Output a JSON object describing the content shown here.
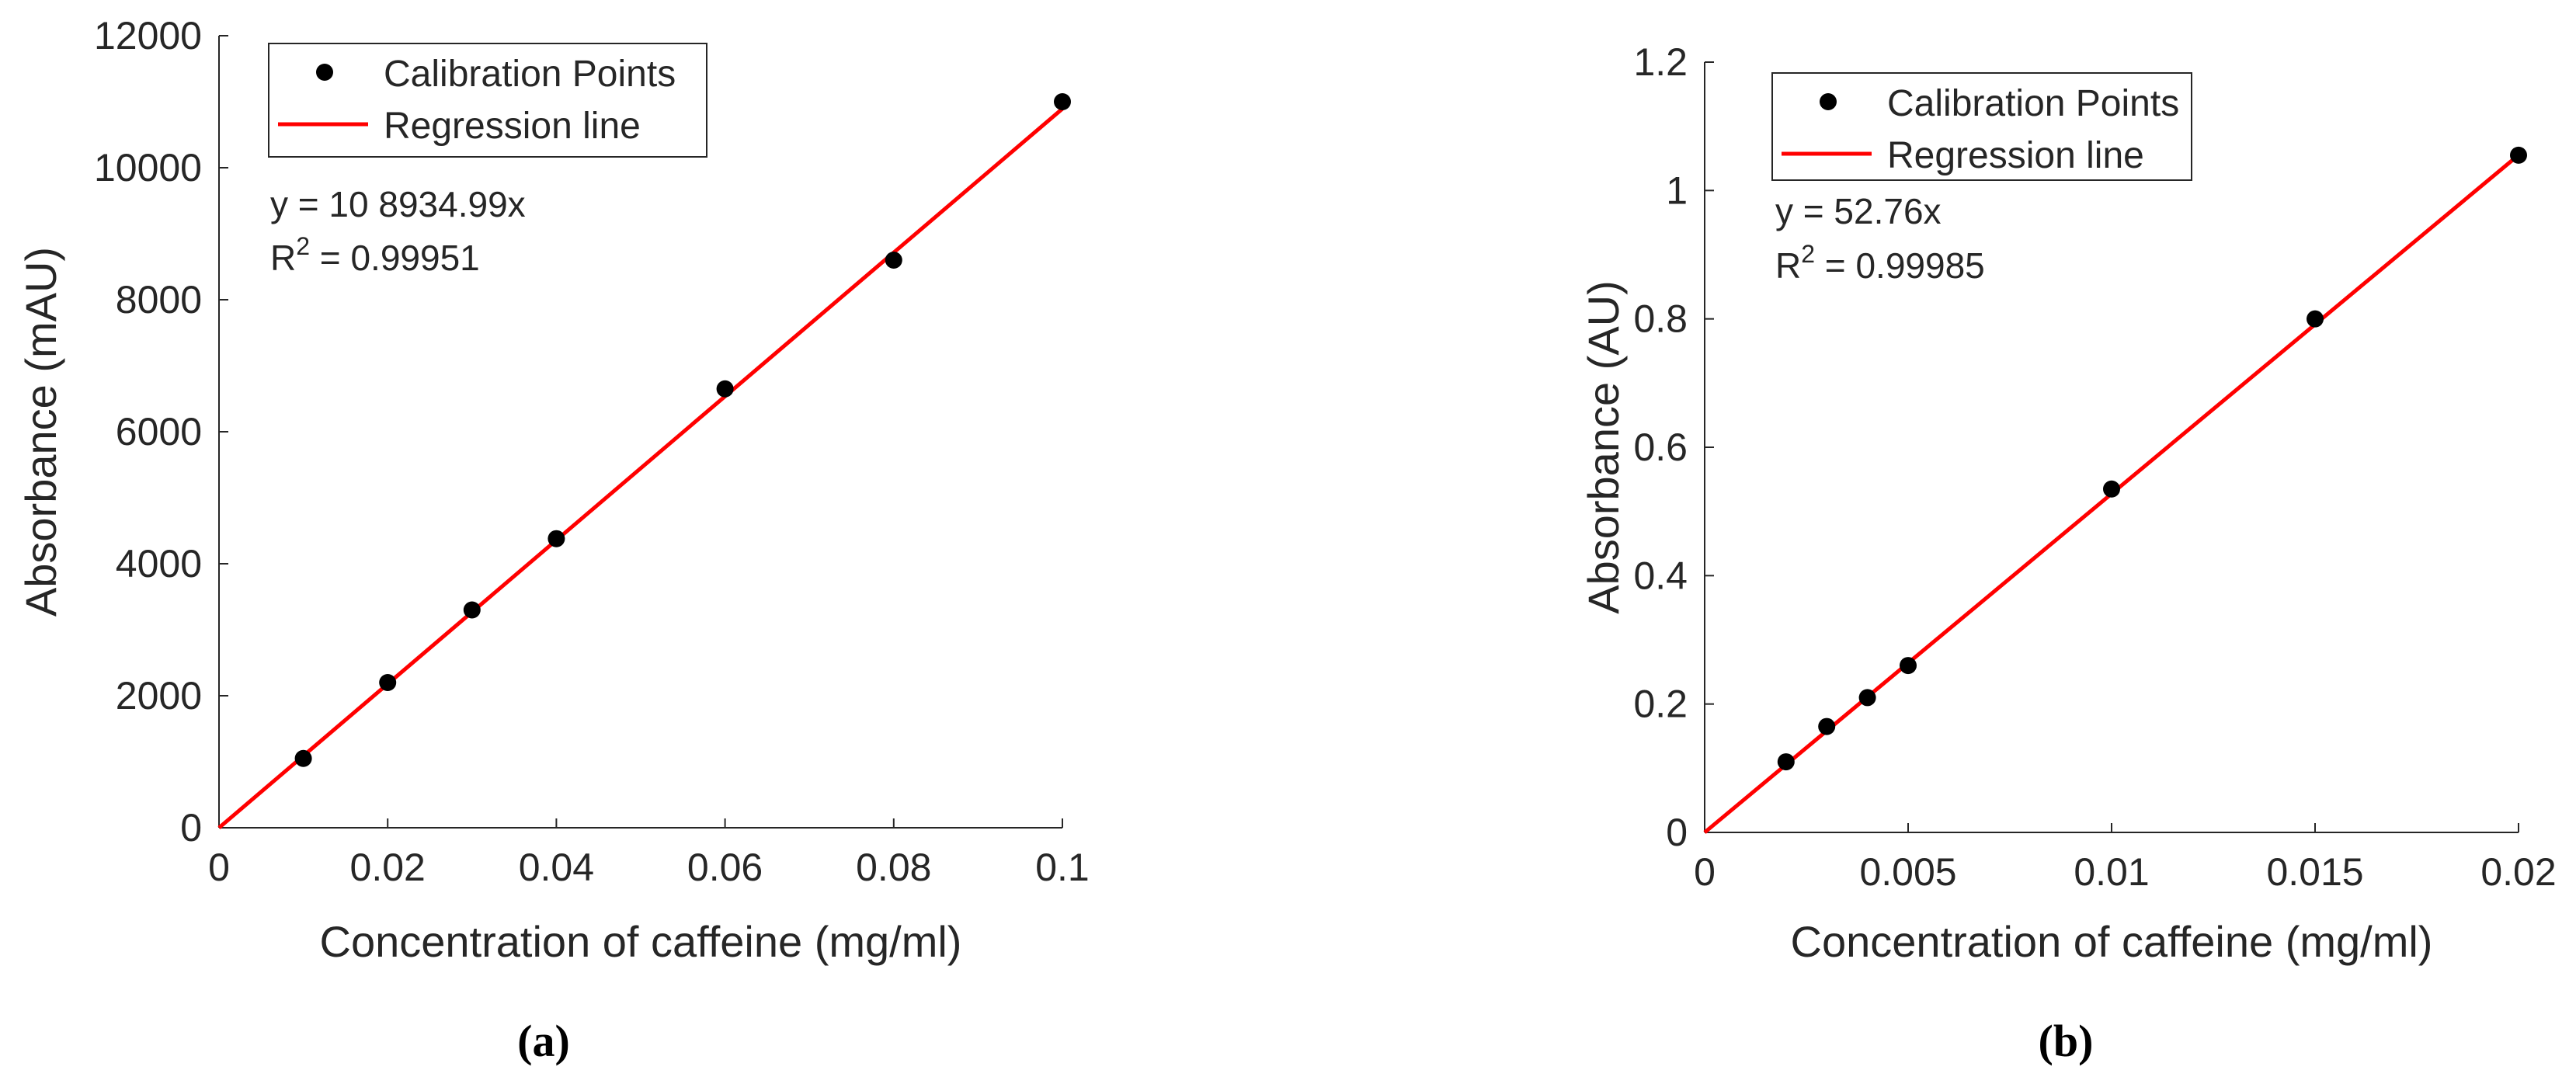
{
  "chart_data": [
    {
      "type": "scatter",
      "panel_label": "(a)",
      "xlabel": "Concentration of caffeine (mg/ml)",
      "ylabel": "Absorbance (mAU)",
      "xlim": [
        0,
        0.1
      ],
      "ylim": [
        0,
        12000
      ],
      "xticks": [
        0,
        0.02,
        0.04,
        0.06,
        0.08,
        0.1
      ],
      "xtick_labels": [
        "0",
        "0.02",
        "0.04",
        "0.06",
        "0.08",
        "0.1"
      ],
      "yticks": [
        0,
        2000,
        4000,
        6000,
        8000,
        10000,
        12000
      ],
      "ytick_labels": [
        "0",
        "2000",
        "4000",
        "6000",
        "8000",
        "10000",
        "12000"
      ],
      "grid": false,
      "legend_position": "top-left",
      "legend": [
        "Calibration Points",
        "Regression line"
      ],
      "series": [
        {
          "name": "Calibration Points",
          "kind": "points",
          "x": [
            0.01,
            0.02,
            0.03,
            0.04,
            0.06,
            0.08,
            0.1
          ],
          "y": [
            1050,
            2200,
            3300,
            4380,
            6650,
            8600,
            11000
          ]
        },
        {
          "name": "Regression line",
          "kind": "line",
          "slope": 108934.99,
          "x": [
            0,
            0.1
          ],
          "y": [
            0,
            10893.5
          ]
        }
      ],
      "annotations": {
        "equation": "y = 10 8934.99x",
        "r2_prefix": "R",
        "r2_sup": "2",
        "r2_value": " = 0.99951"
      }
    },
    {
      "type": "scatter",
      "panel_label": "(b)",
      "xlabel": "Concentration of caffeine (mg/ml)",
      "ylabel": "Absorbance (AU)",
      "xlim": [
        0,
        0.02
      ],
      "ylim": [
        0,
        1.2
      ],
      "xticks": [
        0,
        0.005,
        0.01,
        0.015,
        0.02
      ],
      "xtick_labels": [
        "0",
        "0.005",
        "0.01",
        "0.015",
        "0.02"
      ],
      "yticks": [
        0,
        0.2,
        0.4,
        0.6,
        0.8,
        1.0,
        1.2
      ],
      "ytick_labels": [
        "0",
        "0.2",
        "0.4",
        "0.6",
        "0.8",
        "1",
        "1.2"
      ],
      "grid": false,
      "legend_position": "top-left",
      "legend": [
        "Calibration Points",
        "Regression line"
      ],
      "series": [
        {
          "name": "Calibration Points",
          "kind": "points",
          "x": [
            0.002,
            0.003,
            0.004,
            0.005,
            0.01,
            0.015,
            0.02
          ],
          "y": [
            0.11,
            0.165,
            0.21,
            0.26,
            0.535,
            0.8,
            1.055
          ]
        },
        {
          "name": "Regression line",
          "kind": "line",
          "slope": 52.76,
          "x": [
            0,
            0.02
          ],
          "y": [
            0,
            1.0552
          ]
        }
      ],
      "annotations": {
        "equation": "y = 52.76x",
        "r2_prefix": "R",
        "r2_sup": "2",
        "r2_value": " = 0.99985"
      }
    }
  ],
  "colors": {
    "points": "#000000",
    "regression_line": "#ff0000",
    "axis": "#262626",
    "text": "#262626"
  }
}
